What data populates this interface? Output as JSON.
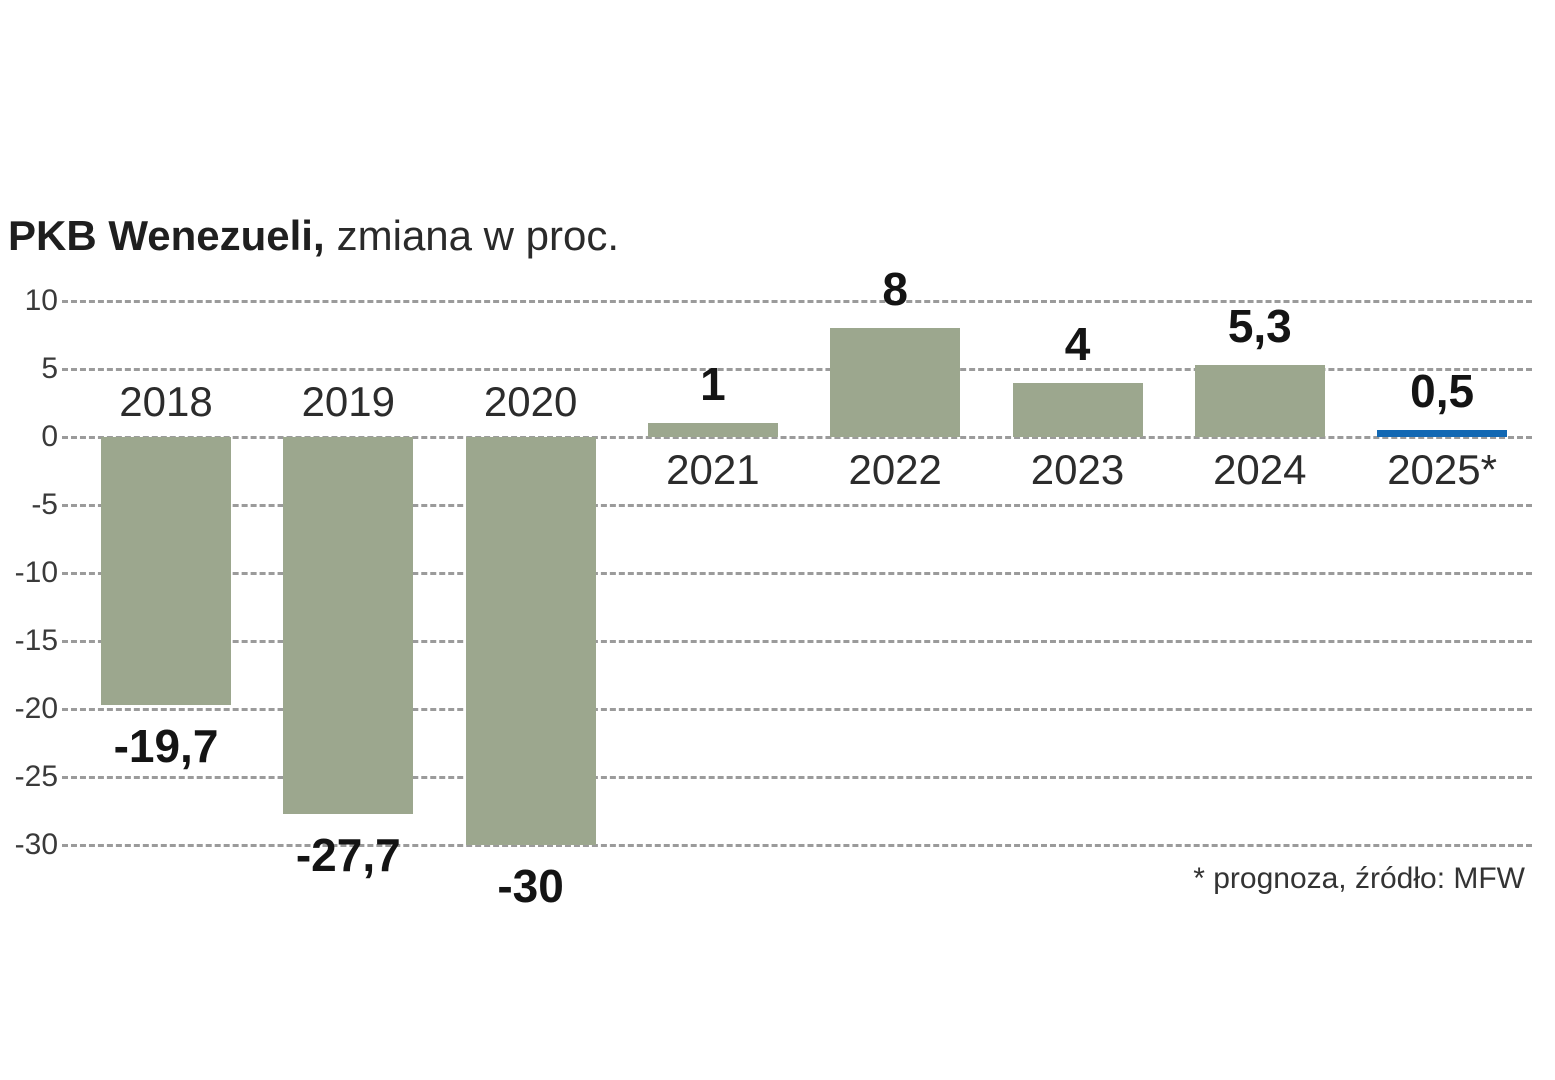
{
  "chart_data": {
    "type": "bar",
    "title": "PKB Wenezueli, zmiana w proc.",
    "title_bold": "PKB Wenezueli,",
    "title_rest": "zmiana w proc.",
    "categories": [
      "2018",
      "2019",
      "2020",
      "2021",
      "2022",
      "2023",
      "2024",
      "2025*"
    ],
    "values": [
      -19.7,
      -27.7,
      -30,
      1,
      8,
      4,
      5.3,
      0.5
    ],
    "value_labels": [
      "-19,7",
      "-27,7",
      "-30",
      "1",
      "8",
      "4",
      "5,3",
      "0,5"
    ],
    "bar_colors": [
      "sage",
      "sage",
      "sage",
      "sage",
      "sage",
      "sage",
      "sage",
      "blue"
    ],
    "colors": {
      "sage": "#9ca78e",
      "blue": "#1268b3"
    },
    "yticks": [
      10,
      5,
      0,
      -5,
      -10,
      -15,
      -20,
      -25,
      -30
    ],
    "ylim": [
      -30,
      10
    ],
    "xlabel": "",
    "ylabel": "",
    "grid": "dashed-horizontal",
    "legend": "none",
    "footnote": "* prognoza, źródło: MFW"
  }
}
